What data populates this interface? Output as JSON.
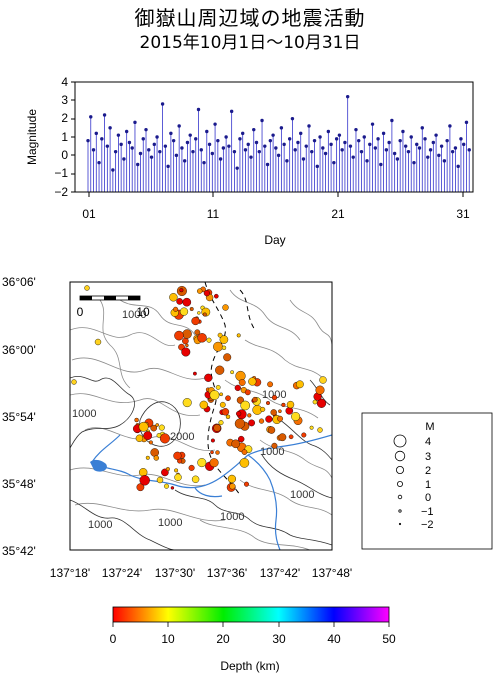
{
  "title": "御嶽山周辺域の地震活動",
  "subtitle": "2015年10月1日～10月31日",
  "timeseries": {
    "ylabel": "Magnitude",
    "xlabel": "Day",
    "yticks": [
      "4",
      "3",
      "2",
      "1",
      "0",
      "−1",
      "−2"
    ],
    "xticks": [
      "01",
      "11",
      "21",
      "31"
    ]
  },
  "map": {
    "lat_labels": [
      "36°06'",
      "36°00'",
      "35°54'",
      "35°48'",
      "35°42'"
    ],
    "lon_labels": [
      "137°18'",
      "137°24'",
      "137°30'",
      "137°36'",
      "137°42'",
      "137°48'"
    ],
    "scale_label_0": "0",
    "scale_label_10": "10",
    "contour_labels": [
      "1000",
      "1000",
      "2000",
      "1000",
      "1000",
      "1000",
      "1000",
      "1000",
      "1000"
    ]
  },
  "legend": {
    "title": "M",
    "labels": [
      "4",
      "3",
      "2",
      "1",
      "0",
      "−1",
      "−2"
    ]
  },
  "colorbar": {
    "title": "Depth (km)",
    "ticks": [
      "0",
      "10",
      "20",
      "30",
      "40",
      "50"
    ]
  },
  "chart_data": {
    "type": "scatter",
    "title": "御嶽山周辺域の地震活動",
    "xlabel": "Day",
    "ylabel": "Magnitude",
    "xlim": [
      0,
      31
    ],
    "ylim": [
      -2,
      4
    ],
    "magnitudes": [
      0.8,
      2.1,
      0.3,
      1.2,
      -0.4,
      0.9,
      2.2,
      0.5,
      1.5,
      -0.8,
      0.2,
      1.1,
      0.6,
      -0.2,
      1.3,
      0.7,
      0.4,
      1.8,
      -0.5,
      0.1,
      0.9,
      1.4,
      0.3,
      -0.1,
      0.6,
      1.0,
      0.2,
      2.8,
      0.5,
      -0.6,
      1.2,
      0.8,
      0.0,
      1.6,
      0.4,
      -0.3,
      0.7,
      1.1,
      0.2,
      0.9,
      2.5,
      0.3,
      -0.4,
      1.3,
      0.6,
      0.1,
      1.7,
      0.8,
      -0.2,
      0.4,
      1.0,
      0.5,
      2.4,
      0.2,
      -0.7,
      0.9,
      1.2,
      0.3,
      0.6,
      -0.1,
      1.4,
      0.7,
      0.2,
      1.9,
      0.5,
      -0.5,
      0.8,
      1.1,
      0.4,
      0.0,
      1.5,
      0.6,
      -0.3,
      0.9,
      2.0,
      0.3,
      0.7,
      1.2,
      -0.2,
      0.5,
      1.6,
      0.2,
      0.8,
      -0.6,
      1.0,
      0.4,
      0.1,
      1.3,
      0.6,
      -0.4,
      0.9,
      1.1,
      0.3,
      0.7,
      3.2,
      0.5,
      -0.1,
      1.4,
      0.8,
      0.2,
      1.0,
      -0.3,
      0.6,
      1.7,
      0.4,
      0.9,
      -0.5,
      1.2,
      0.3,
      0.7,
      1.9,
      0.1,
      -0.2,
      0.8,
      1.3,
      0.5,
      0.2,
      1.0,
      -0.4,
      0.6,
      0.4,
      1.5,
      0.9,
      -0.1,
      0.3,
      0.7,
      1.1,
      0.0,
      0.5,
      -0.3,
      0.8,
      1.6,
      0.2,
      0.4,
      -0.6,
      0.9,
      0.6,
      1.8,
      0.3
    ],
    "map_epicenter_colors_depth_km": "0-10 (red to yellow)",
    "lon_range_deg": [
      "137°18'",
      "137°48'"
    ],
    "lat_range_deg": [
      "35°42'",
      "36°06'"
    ],
    "colorbar_range_km": [
      0,
      50
    ]
  }
}
